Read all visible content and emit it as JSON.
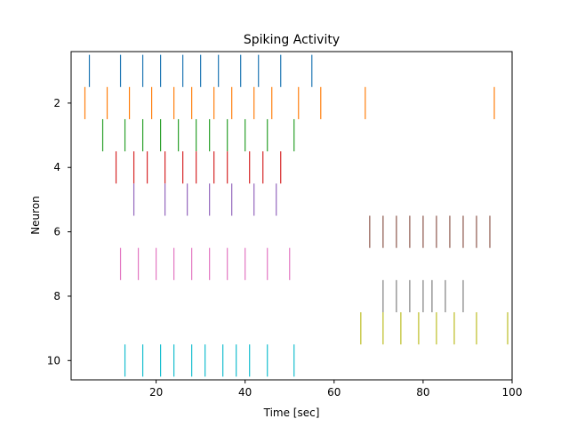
{
  "chart_data": {
    "type": "eventplot",
    "title": "Spiking Activity",
    "xlabel": "Time [sec]",
    "ylabel": "Neuron",
    "xlim": [
      0.9,
      100
    ],
    "ylim": [
      10.6,
      0.4
    ],
    "xticks": [
      20,
      40,
      60,
      80,
      100
    ],
    "yticks": [
      2,
      4,
      6,
      8,
      10
    ],
    "line_length": 1.0,
    "grid": false,
    "legend": false,
    "series": [
      {
        "neuron": 1,
        "color": "#1f77b4",
        "times": [
          5,
          12,
          17,
          21,
          26,
          30,
          34,
          39,
          43,
          48,
          55
        ]
      },
      {
        "neuron": 2,
        "color": "#ff7f0e",
        "times": [
          4,
          9,
          14,
          19,
          24,
          28,
          33,
          37,
          42,
          46,
          52,
          57,
          67,
          96
        ]
      },
      {
        "neuron": 3,
        "color": "#2ca02c",
        "times": [
          8,
          13,
          17,
          21,
          25,
          29,
          32,
          36,
          40,
          45,
          51
        ]
      },
      {
        "neuron": 4,
        "color": "#d62728",
        "times": [
          11,
          15,
          18,
          22,
          26,
          29,
          33,
          36,
          41,
          44,
          48
        ]
      },
      {
        "neuron": 5,
        "color": "#9467bd",
        "times": [
          15,
          22,
          27,
          32,
          37,
          42,
          47
        ]
      },
      {
        "neuron": 6,
        "color": "#8c564b",
        "times": [
          68,
          71,
          74,
          77,
          80,
          83,
          86,
          89,
          92,
          95
        ]
      },
      {
        "neuron": 7,
        "color": "#e377c2",
        "times": [
          12,
          16,
          20,
          24,
          28,
          32,
          36,
          40,
          45,
          50
        ]
      },
      {
        "neuron": 8,
        "color": "#7f7f7f",
        "times": [
          71,
          74,
          77,
          80,
          82,
          85,
          89
        ]
      },
      {
        "neuron": 9,
        "color": "#bcbd22",
        "times": [
          66,
          71,
          75,
          79,
          83,
          87,
          92,
          99
        ]
      },
      {
        "neuron": 10,
        "color": "#17becf",
        "times": [
          13,
          17,
          21,
          24,
          28,
          31,
          35,
          38,
          41,
          45,
          51
        ]
      }
    ]
  }
}
